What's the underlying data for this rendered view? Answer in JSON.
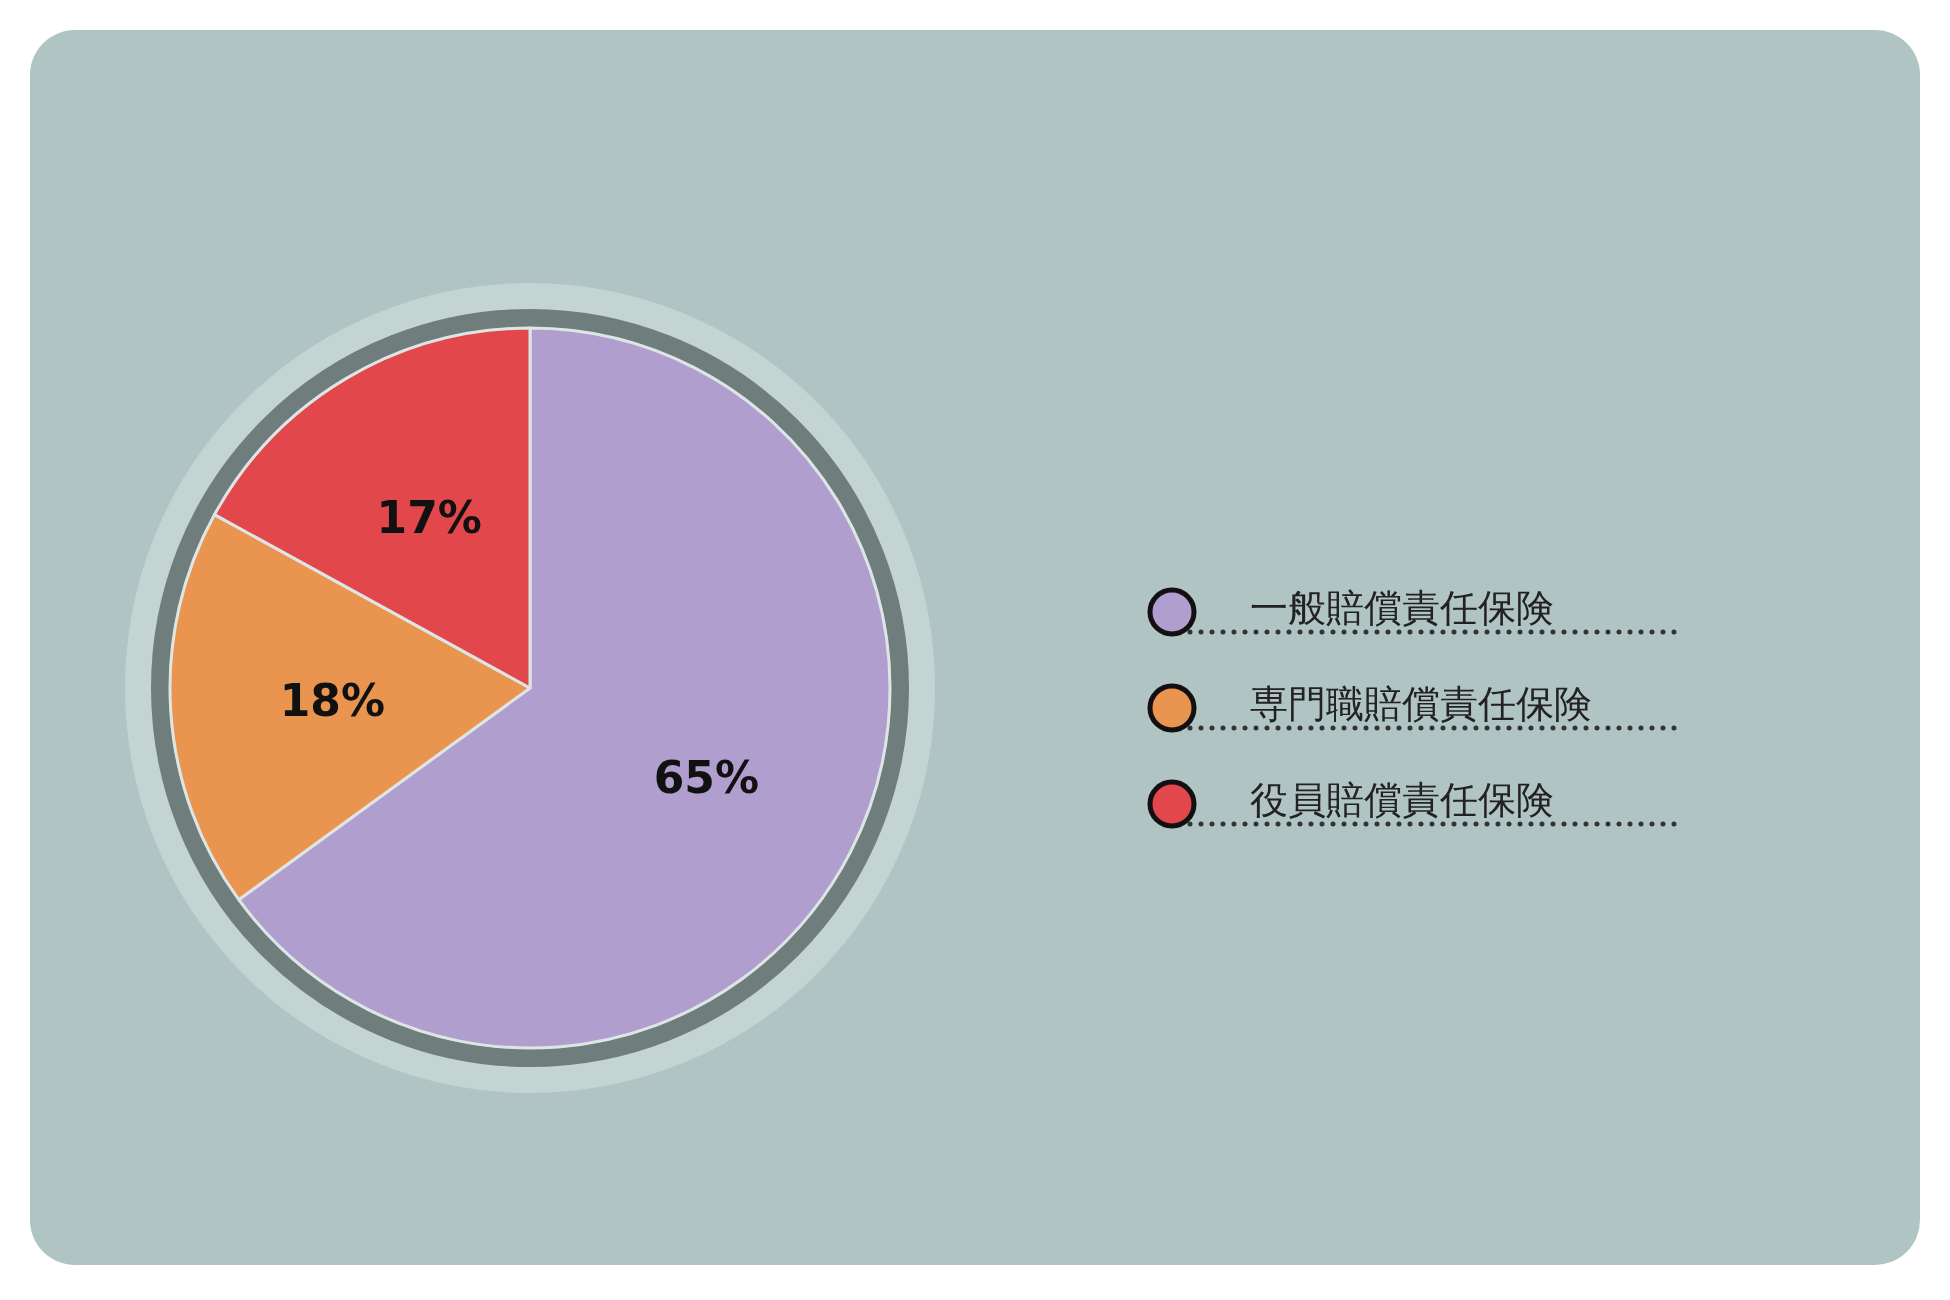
{
  "chart_data": {
    "type": "pie",
    "categories": [
      "一般賠償責任保険",
      "専門職賠償責任保険",
      "役員賠償責任保険"
    ],
    "values": [
      65,
      18,
      17
    ],
    "colors": [
      "#b09fce",
      "#e9954f",
      "#e2474b"
    ],
    "value_labels": [
      "65%",
      "18%",
      "17%"
    ],
    "legend": "right"
  }
}
